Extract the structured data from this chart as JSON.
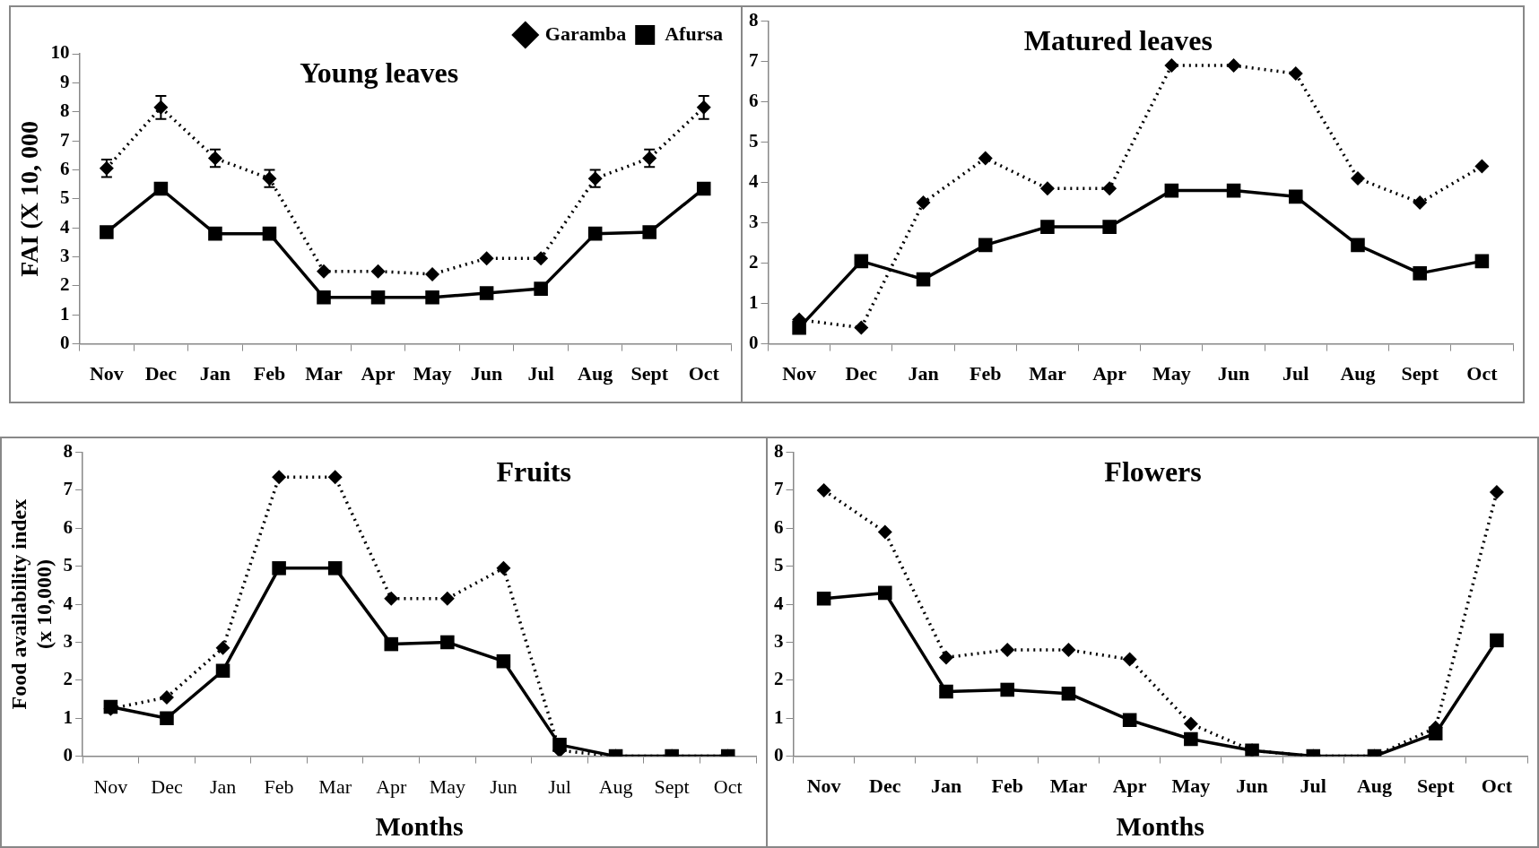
{
  "chart_data": [
    {
      "type": "line",
      "title": "Young leaves",
      "ylabel": "FAI (X 10, 000",
      "categories": [
        "Nov",
        "Dec",
        "Jan",
        "Feb",
        "Mar",
        "Apr",
        "May",
        "Jun",
        "Jul",
        "Aug",
        "Sept",
        "Oct"
      ],
      "ylim": [
        0,
        10
      ],
      "yticks": [
        0,
        1,
        2,
        3,
        4,
        5,
        6,
        7,
        8,
        9,
        10
      ],
      "grid": false,
      "legend": "top right",
      "series": [
        {
          "name": "Garamba",
          "color": "#000000",
          "marker": "diamond",
          "line_style": "dotted",
          "values": [
            6.05,
            8.15,
            6.4,
            5.7,
            2.5,
            2.5,
            2.4,
            2.95,
            2.95,
            5.7,
            6.4,
            8.15
          ],
          "errors": [
            0.3,
            0.4,
            0.3,
            0.3,
            null,
            null,
            null,
            null,
            null,
            0.3,
            0.3,
            0.4
          ]
        },
        {
          "name": "Afursa",
          "color": "#000000",
          "marker": "square",
          "line_style": "solid",
          "values": [
            3.85,
            5.35,
            3.8,
            3.8,
            1.6,
            1.6,
            1.6,
            1.75,
            1.9,
            3.8,
            3.85,
            5.35
          ]
        }
      ]
    },
    {
      "type": "line",
      "title": "Matured leaves",
      "categories": [
        "Nov",
        "Dec",
        "Jan",
        "Feb",
        "Mar",
        "Apr",
        "May",
        "Jun",
        "Jul",
        "Aug",
        "Sept",
        "Oct"
      ],
      "ylim": [
        0,
        8
      ],
      "yticks": [
        0,
        1,
        2,
        3,
        4,
        5,
        6,
        7,
        8
      ],
      "grid": false,
      "series": [
        {
          "color": "#000000",
          "marker": "diamond",
          "line_style": "dotted",
          "values": [
            0.6,
            0.4,
            3.5,
            4.6,
            3.85,
            3.85,
            6.9,
            6.9,
            6.7,
            4.1,
            3.5,
            4.4
          ]
        },
        {
          "color": "#000000",
          "marker": "square",
          "line_style": "solid",
          "values": [
            0.4,
            2.05,
            1.6,
            2.45,
            2.9,
            2.9,
            3.8,
            3.8,
            3.65,
            2.45,
            1.75,
            2.05
          ]
        }
      ]
    },
    {
      "type": "line",
      "title": "Fruits",
      "xlabel": "Months",
      "ylabel": "Food availability index\n(x 10,000)",
      "categories": [
        "Nov",
        "Dec",
        "Jan",
        "Feb",
        "Mar",
        "Apr",
        "May",
        "Jun",
        "Jul",
        "Aug",
        "Sept",
        "Oct"
      ],
      "ylim": [
        0,
        8
      ],
      "yticks": [
        0,
        1,
        2,
        3,
        4,
        5,
        6,
        7,
        8
      ],
      "grid": false,
      "series": [
        {
          "color": "#000000",
          "marker": "diamond",
          "line_style": "dotted",
          "values": [
            1.25,
            1.55,
            2.85,
            7.35,
            7.35,
            4.15,
            4.15,
            4.95,
            0.15,
            0,
            0,
            0
          ]
        },
        {
          "color": "#000000",
          "marker": "square",
          "line_style": "solid",
          "values": [
            1.3,
            1.0,
            2.25,
            4.95,
            4.95,
            2.95,
            3.0,
            2.5,
            0.3,
            0,
            0,
            0
          ]
        }
      ]
    },
    {
      "type": "line",
      "title": "Flowers",
      "xlabel": "Months",
      "categories": [
        "Nov",
        "Dec",
        "Jan",
        "Feb",
        "Mar",
        "Apr",
        "May",
        "Jun",
        "Jul",
        "Aug",
        "Sept",
        "Oct"
      ],
      "ylim": [
        0,
        8
      ],
      "yticks": [
        0,
        1,
        2,
        3,
        4,
        5,
        6,
        7,
        8
      ],
      "grid": false,
      "series": [
        {
          "color": "#000000",
          "marker": "diamond",
          "line_style": "dotted",
          "values": [
            7.0,
            5.9,
            2.6,
            2.8,
            2.8,
            2.55,
            0.85,
            0.15,
            0,
            0,
            0.75,
            6.95
          ]
        },
        {
          "color": "#000000",
          "marker": "square",
          "line_style": "solid",
          "values": [
            4.15,
            4.3,
            1.7,
            1.75,
            1.65,
            0.95,
            0.45,
            0.15,
            0,
            0,
            0.6,
            3.05
          ]
        }
      ]
    }
  ]
}
